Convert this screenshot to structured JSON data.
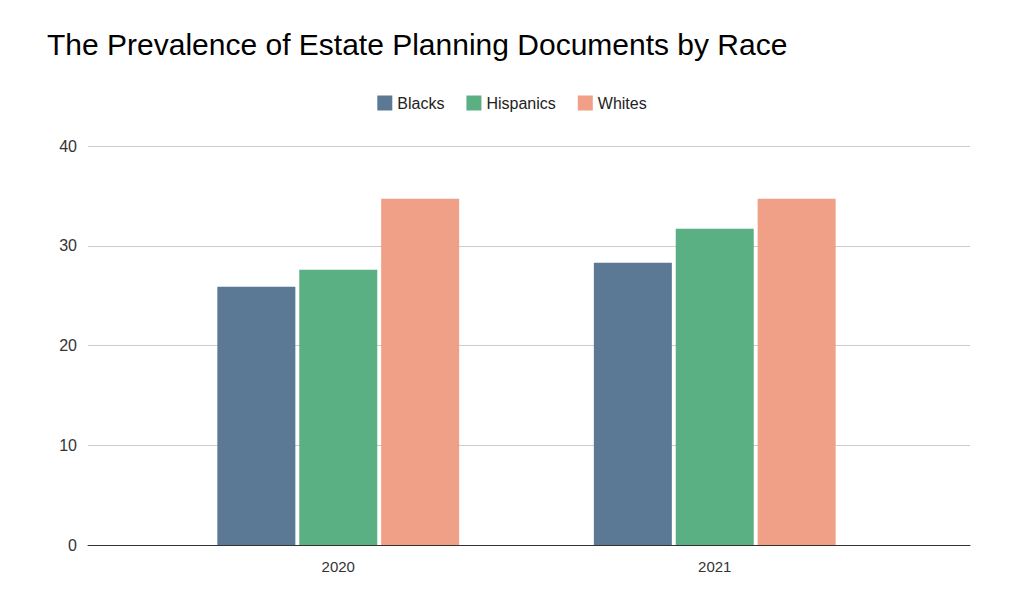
{
  "chart_data": {
    "type": "bar",
    "title": "The Prevalence of Estate Planning Documents by Race",
    "categories": [
      "2020",
      "2021"
    ],
    "series": [
      {
        "name": "Blacks",
        "color": "#5b7895",
        "values": [
          25.9,
          28.3
        ]
      },
      {
        "name": "Hispanics",
        "color": "#5bb083",
        "values": [
          27.6,
          31.7
        ]
      },
      {
        "name": "Whites",
        "color": "#f0a087",
        "values": [
          34.7,
          34.7
        ]
      }
    ],
    "ylim": [
      0,
      40
    ],
    "yticks": [
      0,
      10,
      20,
      30,
      40
    ],
    "grid": true,
    "legend": "top"
  }
}
